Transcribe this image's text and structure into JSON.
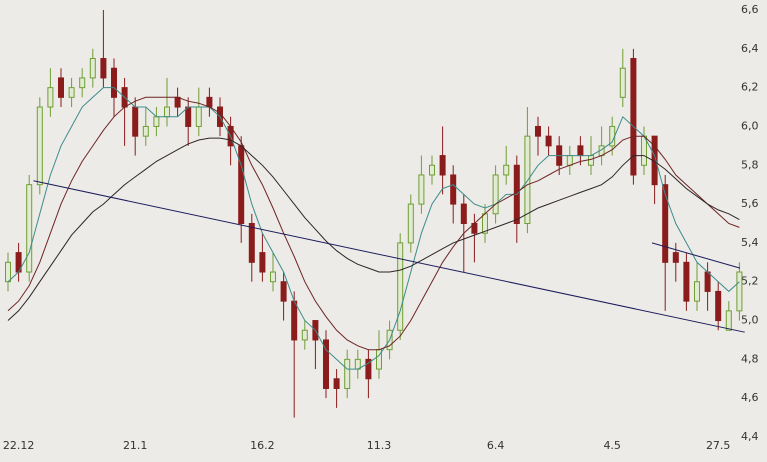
{
  "chart_data": {
    "type": "candlestick",
    "categories": [
      null,
      "22.12",
      null,
      null,
      null,
      null,
      null,
      null,
      null,
      null,
      null,
      null,
      "21.1",
      null,
      null,
      null,
      null,
      null,
      null,
      null,
      null,
      null,
      null,
      null,
      "16.2",
      null,
      null,
      null,
      null,
      null,
      null,
      null,
      null,
      null,
      null,
      "11.3",
      null,
      null,
      null,
      null,
      null,
      null,
      null,
      null,
      null,
      null,
      "6.4",
      null,
      null,
      null,
      null,
      null,
      null,
      null,
      null,
      null,
      null,
      "4.5",
      null,
      null,
      null,
      null,
      null,
      null,
      null,
      null,
      null,
      "27.5",
      null,
      null
    ],
    "open": [
      5.2,
      5.35,
      5.25,
      5.7,
      6.1,
      6.25,
      6.15,
      6.2,
      6.25,
      6.35,
      6.3,
      6.2,
      6.1,
      5.95,
      6.0,
      6.05,
      6.15,
      6.1,
      6.0,
      6.15,
      6.1,
      6.0,
      5.9,
      5.5,
      5.35,
      5.2,
      5.2,
      5.1,
      4.9,
      5.0,
      4.9,
      4.7,
      4.65,
      4.75,
      4.8,
      4.75,
      4.85,
      4.95,
      5.4,
      5.6,
      5.75,
      5.85,
      5.75,
      5.6,
      5.5,
      5.45,
      5.55,
      5.75,
      5.8,
      5.5,
      6.0,
      5.95,
      5.9,
      5.8,
      5.9,
      5.8,
      5.85,
      5.9,
      6.15,
      6.35,
      5.8,
      5.95,
      5.7,
      5.35,
      5.3,
      5.1,
      5.25,
      5.15,
      4.95,
      5.05
    ],
    "high": [
      5.35,
      5.4,
      5.75,
      6.15,
      6.3,
      6.3,
      6.25,
      6.3,
      6.4,
      6.6,
      6.35,
      6.25,
      6.15,
      6.1,
      6.1,
      6.25,
      6.2,
      6.15,
      6.2,
      6.2,
      6.15,
      6.05,
      5.95,
      5.55,
      5.45,
      5.35,
      5.25,
      5.15,
      5.0,
      5.0,
      4.95,
      4.75,
      4.85,
      4.85,
      4.85,
      4.95,
      5.0,
      5.45,
      5.65,
      5.85,
      5.85,
      6.0,
      5.8,
      5.65,
      5.55,
      5.6,
      5.8,
      5.9,
      5.85,
      6.1,
      6.05,
      6.0,
      5.95,
      5.9,
      5.95,
      5.95,
      6.0,
      6.05,
      6.4,
      6.4,
      6.0,
      5.95,
      5.75,
      5.4,
      5.35,
      5.3,
      5.3,
      5.2,
      5.1,
      5.3
    ],
    "low": [
      5.15,
      5.2,
      5.2,
      5.65,
      6.05,
      6.1,
      6.1,
      6.15,
      6.2,
      6.2,
      6.05,
      5.9,
      5.85,
      5.9,
      5.95,
      6.0,
      6.05,
      5.9,
      5.95,
      6.05,
      5.95,
      5.8,
      5.4,
      5.2,
      5.2,
      5.15,
      5.0,
      4.5,
      4.85,
      4.75,
      4.6,
      4.55,
      4.6,
      4.7,
      4.6,
      4.7,
      4.8,
      4.9,
      5.35,
      5.55,
      5.7,
      5.65,
      5.5,
      5.25,
      5.3,
      5.4,
      5.5,
      5.7,
      5.4,
      5.45,
      5.85,
      5.85,
      5.75,
      5.75,
      5.8,
      5.75,
      5.8,
      5.85,
      6.1,
      5.7,
      5.75,
      5.6,
      5.05,
      5.2,
      5.05,
      5.05,
      5.05,
      4.95,
      4.95,
      5.0
    ],
    "close": [
      5.3,
      5.25,
      5.7,
      6.1,
      6.2,
      6.15,
      6.2,
      6.25,
      6.35,
      6.25,
      6.15,
      6.1,
      5.95,
      6.0,
      6.05,
      6.1,
      6.1,
      6.0,
      6.1,
      6.1,
      6.0,
      5.9,
      5.5,
      5.3,
      5.25,
      5.25,
      5.1,
      4.9,
      4.95,
      4.9,
      4.65,
      4.65,
      4.8,
      4.8,
      4.7,
      4.85,
      4.95,
      5.4,
      5.6,
      5.75,
      5.8,
      5.75,
      5.6,
      5.5,
      5.45,
      5.55,
      5.75,
      5.8,
      5.5,
      5.95,
      5.95,
      5.9,
      5.8,
      5.85,
      5.85,
      5.85,
      5.9,
      6.0,
      6.3,
      5.75,
      5.95,
      5.7,
      5.3,
      5.3,
      5.1,
      5.2,
      5.15,
      5.0,
      5.05,
      5.25
    ],
    "up_color": "#6f9e35",
    "up_fill": "#e3ead2",
    "down_color": "#8a1c1c",
    "series": [
      {
        "color": "#3c8c8c",
        "values": [
          5.2,
          5.25,
          5.35,
          5.55,
          5.75,
          5.9,
          6.0,
          6.1,
          6.15,
          6.2,
          6.2,
          6.15,
          6.1,
          6.1,
          6.05,
          6.05,
          6.05,
          6.1,
          6.1,
          6.1,
          6.05,
          5.95,
          5.8,
          5.6,
          5.45,
          5.35,
          5.25,
          5.1,
          5.0,
          4.95,
          4.85,
          4.8,
          4.75,
          4.75,
          4.78,
          4.82,
          4.9,
          5.05,
          5.25,
          5.45,
          5.6,
          5.68,
          5.7,
          5.65,
          5.6,
          5.58,
          5.6,
          5.65,
          5.65,
          5.72,
          5.8,
          5.85,
          5.85,
          5.85,
          5.85,
          5.85,
          5.88,
          5.92,
          6.05,
          6.0,
          5.95,
          5.85,
          5.65,
          5.5,
          5.4,
          5.3,
          5.25,
          5.2,
          5.15,
          5.2
        ]
      },
      {
        "color": "#6e2424",
        "values": [
          5.05,
          5.1,
          5.18,
          5.3,
          5.45,
          5.6,
          5.72,
          5.82,
          5.9,
          5.98,
          6.05,
          6.1,
          6.13,
          6.15,
          6.15,
          6.15,
          6.15,
          6.13,
          6.12,
          6.1,
          6.07,
          6.0,
          5.92,
          5.8,
          5.7,
          5.58,
          5.45,
          5.33,
          5.2,
          5.1,
          5.02,
          4.95,
          4.9,
          4.87,
          4.85,
          4.85,
          4.87,
          4.92,
          5.0,
          5.1,
          5.2,
          5.3,
          5.38,
          5.45,
          5.5,
          5.55,
          5.6,
          5.63,
          5.66,
          5.7,
          5.72,
          5.75,
          5.78,
          5.8,
          5.82,
          5.83,
          5.85,
          5.88,
          5.93,
          5.95,
          5.95,
          5.9,
          5.83,
          5.75,
          5.7,
          5.65,
          5.6,
          5.55,
          5.5,
          5.48
        ]
      },
      {
        "color": "#2e2626",
        "values": [
          5.0,
          5.05,
          5.12,
          5.2,
          5.28,
          5.36,
          5.44,
          5.5,
          5.56,
          5.6,
          5.65,
          5.7,
          5.74,
          5.78,
          5.82,
          5.85,
          5.88,
          5.91,
          5.93,
          5.94,
          5.94,
          5.93,
          5.9,
          5.85,
          5.8,
          5.74,
          5.67,
          5.6,
          5.53,
          5.47,
          5.41,
          5.36,
          5.32,
          5.29,
          5.27,
          5.25,
          5.25,
          5.26,
          5.28,
          5.31,
          5.34,
          5.37,
          5.4,
          5.42,
          5.44,
          5.46,
          5.48,
          5.5,
          5.52,
          5.55,
          5.58,
          5.6,
          5.62,
          5.64,
          5.66,
          5.68,
          5.7,
          5.74,
          5.8,
          5.85,
          5.85,
          5.82,
          5.78,
          5.73,
          5.68,
          5.64,
          5.6,
          5.57,
          5.55,
          5.52
        ]
      }
    ],
    "trendlines": [
      {
        "color": "#1c1c5c",
        "x": [
          2.4,
          69.5
        ],
        "y": [
          5.72,
          4.94
        ]
      },
      {
        "color": "#1c1c5c",
        "x": [
          60.75,
          69.06
        ],
        "y": [
          5.4,
          5.27
        ]
      }
    ],
    "ylim": [
      4.4,
      6.6
    ],
    "yticks": [
      {
        "value": 4.4,
        "label": "4,4"
      },
      {
        "value": 4.6,
        "label": "4,6"
      },
      {
        "value": 4.8,
        "label": "4,8"
      },
      {
        "value": 5.0,
        "label": "5,0"
      },
      {
        "value": 5.2,
        "label": "5,2"
      },
      {
        "value": 5.4,
        "label": "5,4"
      },
      {
        "value": 5.6,
        "label": "5,6"
      },
      {
        "value": 5.8,
        "label": "5,8"
      },
      {
        "value": 6.0,
        "label": "6,0"
      },
      {
        "value": 6.2,
        "label": "6,2"
      },
      {
        "value": 6.4,
        "label": "6,4"
      },
      {
        "value": 6.6,
        "label": "6,6"
      }
    ],
    "grid": false
  }
}
